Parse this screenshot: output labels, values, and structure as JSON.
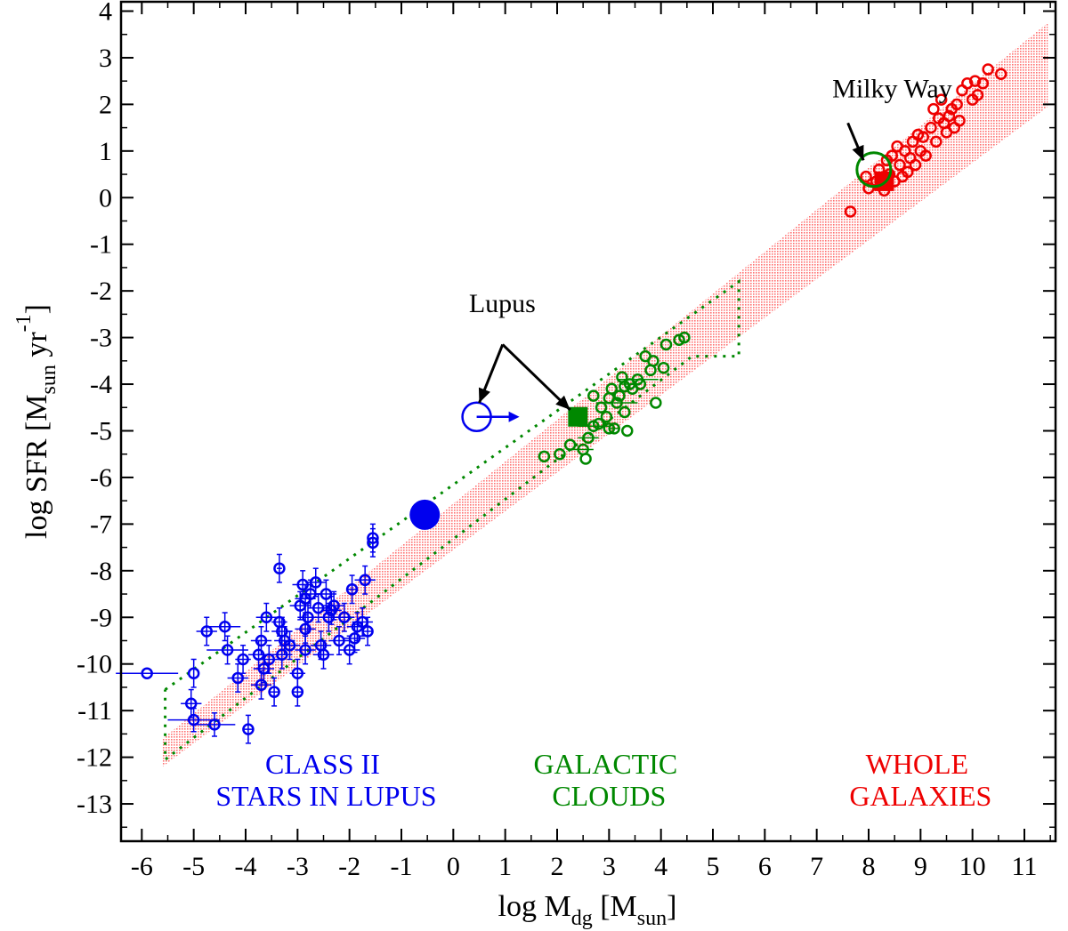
{
  "chart_data": {
    "type": "scatter",
    "xlabel": {
      "main": "log M",
      "sub": "dg",
      "unit_open": " [M",
      "unit_sub": "sun",
      "unit_close": "]"
    },
    "ylabel": {
      "main": "log SFR [M",
      "sub": "sun",
      "mid": " yr",
      "sup": "-1",
      "close": "]"
    },
    "xlim": [
      -6.4,
      11.6
    ],
    "ylim": [
      -13.8,
      4.2
    ],
    "xticks": [
      -6,
      -5,
      -4,
      -3,
      -2,
      -1,
      0,
      1,
      2,
      3,
      4,
      5,
      6,
      7,
      8,
      9,
      10,
      11
    ],
    "yticks": [
      4,
      3,
      2,
      1,
      0,
      -1,
      -2,
      -3,
      -4,
      -5,
      -6,
      -7,
      -8,
      -9,
      -10,
      -11,
      -12,
      -13
    ],
    "colors": {
      "stars": "#0000ee",
      "clouds": "#008800",
      "galaxies": "#ee0000",
      "band": "#ff7070"
    },
    "band": {
      "upper": [
        [
          -5.6,
          -11.6
        ],
        [
          11.45,
          3.75
        ]
      ],
      "lower": [
        [
          -5.6,
          -12.2
        ],
        [
          11.45,
          1.95
        ]
      ]
    },
    "clouds_envelope": [
      [
        -5.55,
        -10.55
      ],
      [
        5.5,
        -1.8
      ],
      [
        5.5,
        -3.4
      ],
      [
        4.6,
        -3.4
      ],
      [
        -5.55,
        -12.05
      ],
      [
        -5.55,
        -10.55
      ]
    ],
    "series": [
      {
        "name": "Class II stars in Lupus",
        "marker": "open-circle",
        "color": "#0000ee",
        "points": [
          [
            -5.9,
            -10.2,
            0.6,
            0
          ],
          [
            -5.0,
            -10.2,
            0,
            0.3
          ],
          [
            -4.75,
            -9.3,
            0.2,
            0.3
          ],
          [
            -4.4,
            -9.2,
            0.3,
            0.3
          ],
          [
            -4.35,
            -9.7,
            0.4,
            0.3
          ],
          [
            -5.05,
            -10.85,
            0.2,
            0.3
          ],
          [
            -5.0,
            -11.2,
            0.5,
            0.25
          ],
          [
            -4.6,
            -11.3,
            0.4,
            0.25
          ],
          [
            -3.95,
            -11.4,
            0.1,
            0.3
          ],
          [
            -4.15,
            -10.3,
            0.2,
            0.3
          ],
          [
            -4.05,
            -9.9,
            0.15,
            0.3
          ],
          [
            -3.75,
            -9.8,
            0.2,
            0.3
          ],
          [
            -3.7,
            -9.5,
            0.2,
            0.3
          ],
          [
            -3.6,
            -9.0,
            0.2,
            0.3
          ],
          [
            -3.55,
            -9.9,
            0.2,
            0.3
          ],
          [
            -3.65,
            -10.1,
            0.2,
            0.3
          ],
          [
            -3.7,
            -10.45,
            0.2,
            0.3
          ],
          [
            -3.45,
            -10.6,
            0.1,
            0.3
          ],
          [
            -3.35,
            -9.1,
            0.15,
            0.3
          ],
          [
            -3.3,
            -9.3,
            0.2,
            0.3
          ],
          [
            -3.25,
            -9.5,
            0.2,
            0.3
          ],
          [
            -3.3,
            -9.8,
            0.2,
            0.3
          ],
          [
            -3.35,
            -7.95,
            0.05,
            0.3
          ],
          [
            -3.15,
            -9.6,
            0.2,
            0.3
          ],
          [
            -3.0,
            -10.2,
            0.15,
            0.3
          ],
          [
            -3.0,
            -10.6,
            0.1,
            0.3
          ],
          [
            -2.95,
            -8.75,
            0.2,
            0.3
          ],
          [
            -2.9,
            -8.3,
            0.2,
            0.3
          ],
          [
            -2.85,
            -8.6,
            0.2,
            0.3
          ],
          [
            -2.85,
            -9.25,
            0.2,
            0.3
          ],
          [
            -2.8,
            -9.0,
            0.2,
            0.3
          ],
          [
            -2.85,
            -9.7,
            0.2,
            0.3
          ],
          [
            -2.75,
            -8.5,
            0.2,
            0.3
          ],
          [
            -2.65,
            -8.25,
            0.2,
            0.3
          ],
          [
            -2.6,
            -8.8,
            0.2,
            0.3
          ],
          [
            -2.55,
            -9.6,
            0.2,
            0.3
          ],
          [
            -2.5,
            -9.8,
            0.2,
            0.3
          ],
          [
            -2.45,
            -8.5,
            0.2,
            0.3
          ],
          [
            -2.4,
            -9.0,
            0.2,
            0.3
          ],
          [
            -2.35,
            -8.85,
            0.2,
            0.3
          ],
          [
            -2.3,
            -8.75,
            0.2,
            0.3
          ],
          [
            -2.2,
            -9.5,
            0.2,
            0.3
          ],
          [
            -2.1,
            -9.0,
            0.2,
            0.3
          ],
          [
            -2.0,
            -9.7,
            0.2,
            0.3
          ],
          [
            -1.95,
            -8.4,
            0.1,
            0.3
          ],
          [
            -1.9,
            -9.45,
            0.2,
            0.3
          ],
          [
            -1.85,
            -9.2,
            0.2,
            0.3
          ],
          [
            -1.75,
            -9.1,
            0.2,
            0.3
          ],
          [
            -1.7,
            -8.2,
            0.2,
            0.3
          ],
          [
            -1.65,
            -9.3,
            0.1,
            0.3
          ],
          [
            -1.55,
            -7.3,
            0.05,
            0.3
          ],
          [
            -1.55,
            -7.4,
            0.05,
            0.3
          ]
        ]
      },
      {
        "name": "Galactic clouds",
        "marker": "open-circle",
        "color": "#008800",
        "points": [
          [
            1.75,
            -5.55,
            0,
            0
          ],
          [
            2.05,
            -5.5,
            0,
            0
          ],
          [
            2.25,
            -5.3,
            0,
            0
          ],
          [
            2.5,
            -5.4,
            0.2,
            0
          ],
          [
            2.55,
            -5.6,
            0,
            0
          ],
          [
            2.6,
            -5.15,
            0.2,
            0
          ],
          [
            2.7,
            -4.9,
            0.3,
            0
          ],
          [
            2.7,
            -4.25,
            0,
            0
          ],
          [
            2.85,
            -4.5,
            0,
            0
          ],
          [
            2.95,
            -4.7,
            0,
            0
          ],
          [
            3.0,
            -4.3,
            0,
            0
          ],
          [
            3.05,
            -4.1,
            0,
            0
          ],
          [
            3.1,
            -4.95,
            0.1,
            0
          ],
          [
            3.15,
            -4.4,
            0.4,
            0
          ],
          [
            3.2,
            -4.25,
            0,
            0
          ],
          [
            3.25,
            -3.85,
            0,
            0
          ],
          [
            3.3,
            -4.05,
            0,
            0
          ],
          [
            3.3,
            -4.6,
            0,
            0
          ],
          [
            3.35,
            -5.0,
            0,
            0
          ],
          [
            3.4,
            -4.0,
            0.2,
            0
          ],
          [
            3.45,
            -4.1,
            0,
            0
          ],
          [
            3.55,
            -3.9,
            0.4,
            0
          ],
          [
            3.6,
            -4.0,
            0,
            0
          ],
          [
            3.7,
            -3.4,
            0,
            0
          ],
          [
            3.8,
            -3.7,
            0,
            0
          ],
          [
            3.85,
            -3.5,
            0,
            0
          ],
          [
            3.9,
            -4.4,
            0,
            0
          ],
          [
            4.05,
            -3.65,
            0,
            0
          ],
          [
            4.1,
            -3.15,
            0,
            0
          ],
          [
            4.35,
            -3.05,
            0,
            0
          ],
          [
            4.45,
            -3.0,
            0,
            0
          ],
          [
            3.0,
            -4.95,
            0,
            0
          ],
          [
            2.8,
            -4.85,
            0,
            0
          ]
        ]
      },
      {
        "name": "Whole galaxies",
        "marker": "open-circle",
        "color": "#ee0000",
        "points": [
          [
            7.65,
            -0.3,
            0,
            0
          ],
          [
            7.95,
            0.45,
            0,
            0
          ],
          [
            8.0,
            0.2,
            0,
            0
          ],
          [
            8.15,
            0.35,
            0,
            0
          ],
          [
            8.2,
            0.6,
            0,
            0
          ],
          [
            8.3,
            0.15,
            0,
            0
          ],
          [
            8.35,
            0.8,
            0,
            0
          ],
          [
            8.4,
            0.5,
            0,
            0
          ],
          [
            8.45,
            0.9,
            0,
            0
          ],
          [
            8.5,
            0.35,
            0,
            0
          ],
          [
            8.6,
            0.7,
            0,
            0
          ],
          [
            8.65,
            0.45,
            0,
            0
          ],
          [
            8.7,
            1.0,
            0,
            0
          ],
          [
            8.75,
            0.55,
            0,
            0
          ],
          [
            8.8,
            0.85,
            0,
            0
          ],
          [
            8.85,
            1.2,
            0,
            0
          ],
          [
            8.9,
            0.7,
            0,
            0
          ],
          [
            9.0,
            1.0,
            0,
            0
          ],
          [
            9.05,
            1.3,
            0,
            0
          ],
          [
            9.1,
            0.9,
            0,
            0
          ],
          [
            9.2,
            1.5,
            0,
            0
          ],
          [
            9.25,
            1.9,
            0,
            0
          ],
          [
            9.3,
            1.2,
            0,
            0
          ],
          [
            9.4,
            2.1,
            0,
            0
          ],
          [
            9.45,
            1.6,
            0,
            0
          ],
          [
            9.5,
            1.4,
            0,
            0
          ],
          [
            9.55,
            1.75,
            0,
            0
          ],
          [
            9.6,
            1.9,
            0,
            0
          ],
          [
            9.65,
            1.5,
            0,
            0
          ],
          [
            9.7,
            2.0,
            0,
            0
          ],
          [
            9.75,
            1.65,
            0,
            0
          ],
          [
            9.8,
            2.3,
            0,
            0
          ],
          [
            9.9,
            2.45,
            0,
            0
          ],
          [
            10.0,
            2.1,
            0,
            0
          ],
          [
            10.05,
            2.5,
            0,
            0
          ],
          [
            10.1,
            2.2,
            0,
            0
          ],
          [
            10.2,
            2.45,
            0,
            0
          ],
          [
            10.3,
            2.75,
            0,
            0
          ],
          [
            10.55,
            2.65,
            0,
            0
          ],
          [
            8.55,
            1.1,
            0,
            0
          ],
          [
            9.35,
            1.7,
            0,
            0
          ],
          [
            8.95,
            1.35,
            0,
            0
          ]
        ]
      }
    ],
    "special_markers": [
      {
        "name": "stars-total",
        "x": -0.55,
        "y": -6.8,
        "style": "filled-circle",
        "color": "#0000ee"
      },
      {
        "name": "lupus-limit",
        "x": 0.45,
        "y": -4.7,
        "style": "open-circle-arrow",
        "color": "#0000ee"
      },
      {
        "name": "lupus-cloud",
        "x": 2.4,
        "y": -4.7,
        "style": "filled-square",
        "color": "#008800"
      },
      {
        "name": "milky-way-sfr",
        "x": 8.3,
        "y": 0.35,
        "style": "filled-square",
        "color": "#ee0000"
      },
      {
        "name": "milky-way",
        "x": 8.1,
        "y": 0.6,
        "style": "big-open-circle",
        "color": "#008800"
      }
    ],
    "annotations": {
      "milky_way": {
        "text": "Milky Way",
        "x": 7.3,
        "y": 2.15,
        "arrow_from": [
          7.6,
          1.6
        ],
        "arrow_to": [
          7.9,
          0.8
        ]
      },
      "lupus": {
        "text": "Lupus",
        "x": 0.3,
        "y": -2.45,
        "arrow_from": [
          0.95,
          -3.15
        ],
        "arrows_to": [
          [
            0.5,
            -4.4
          ],
          [
            2.25,
            -4.55
          ]
        ]
      }
    },
    "region_labels": [
      {
        "lines": [
          "CLASS II",
          "STARS IN LUPUS"
        ],
        "x": -2.45,
        "y": -12.35,
        "color": "#0000ee"
      },
      {
        "lines": [
          "GALACTIC",
          "CLOUDS"
        ],
        "x": 3.0,
        "y": -12.35,
        "color": "#008800"
      },
      {
        "lines": [
          "WHOLE",
          "GALAXIES"
        ],
        "x": 9.0,
        "y": -12.35,
        "color": "#ee0000"
      }
    ]
  }
}
